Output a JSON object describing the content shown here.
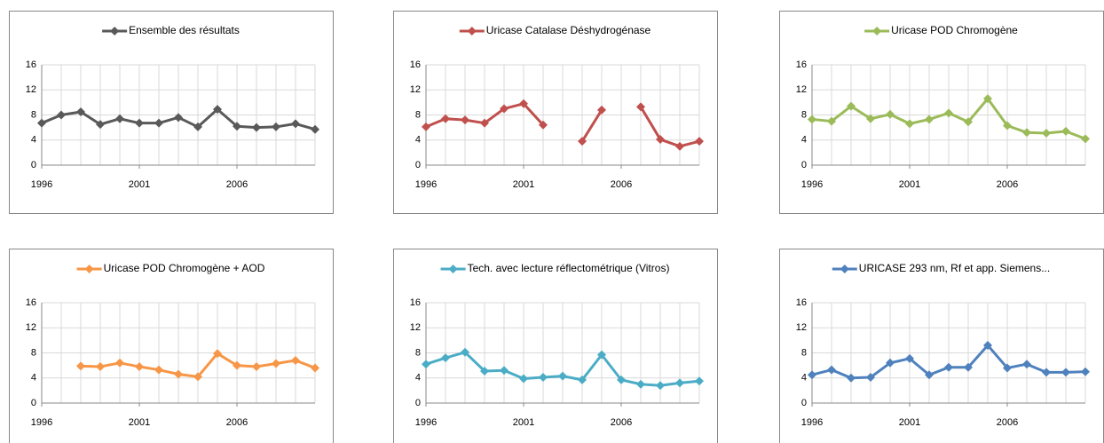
{
  "chart_data": [
    {
      "type": "line",
      "xlim": [
        1996,
        2010
      ],
      "xticks": [
        1996,
        2001,
        2006
      ],
      "ylim": [
        0,
        16
      ],
      "yticks": [
        0,
        4,
        8,
        12,
        16
      ],
      "grid": true,
      "x": [
        1996,
        1997,
        1998,
        1999,
        2000,
        2001,
        2002,
        2003,
        2004,
        2005,
        2006,
        2007,
        2008,
        2009,
        2010
      ],
      "series": [
        {
          "name": "Ensemble des résultats",
          "color": "#595959",
          "values": [
            6.7,
            8.0,
            8.5,
            6.5,
            7.4,
            6.7,
            6.7,
            7.6,
            6.1,
            8.9,
            6.2,
            6.0,
            6.1,
            6.6,
            5.7
          ]
        }
      ]
    },
    {
      "type": "line",
      "xlim": [
        1996,
        2010
      ],
      "xticks": [
        1996,
        2001,
        2006
      ],
      "ylim": [
        0,
        16
      ],
      "yticks": [
        0,
        4,
        8,
        12,
        16
      ],
      "grid": true,
      "x": [
        1996,
        1997,
        1998,
        1999,
        2000,
        2001,
        2002,
        2003,
        2004,
        2005,
        2006,
        2007,
        2008,
        2009,
        2010
      ],
      "series": [
        {
          "name": "Uricase Catalase Déshydrogénase",
          "color": "#c0504d",
          "values": [
            6.1,
            7.4,
            7.2,
            6.7,
            9.0,
            9.8,
            6.4,
            null,
            3.8,
            8.8,
            null,
            9.3,
            4.1,
            3.0,
            3.8
          ]
        }
      ]
    },
    {
      "type": "line",
      "xlim": [
        1996,
        2010
      ],
      "xticks": [
        1996,
        2001,
        2006
      ],
      "ylim": [
        0,
        16
      ],
      "yticks": [
        0,
        4,
        8,
        12,
        16
      ],
      "grid": true,
      "x": [
        1996,
        1997,
        1998,
        1999,
        2000,
        2001,
        2002,
        2003,
        2004,
        2005,
        2006,
        2007,
        2008,
        2009,
        2010
      ],
      "series": [
        {
          "name": "Uricase POD Chromogène",
          "color": "#9bbb59",
          "values": [
            7.3,
            7.0,
            9.4,
            7.4,
            8.1,
            6.6,
            7.3,
            8.3,
            6.9,
            10.6,
            6.3,
            5.2,
            5.1,
            5.4,
            4.2
          ]
        }
      ]
    },
    {
      "type": "line",
      "xlim": [
        1996,
        2010
      ],
      "xticks": [
        1996,
        2001,
        2006
      ],
      "ylim": [
        0,
        16
      ],
      "yticks": [
        0,
        4,
        8,
        12,
        16
      ],
      "grid": true,
      "x": [
        1996,
        1997,
        1998,
        1999,
        2000,
        2001,
        2002,
        2003,
        2004,
        2005,
        2006,
        2007,
        2008,
        2009,
        2010
      ],
      "series": [
        {
          "name": "Uricase POD Chromogène + AOD",
          "color": "#f79646",
          "values": [
            null,
            null,
            5.9,
            5.8,
            6.4,
            5.8,
            5.3,
            4.6,
            4.2,
            7.9,
            6.0,
            5.8,
            6.3,
            6.8,
            5.6
          ]
        }
      ]
    },
    {
      "type": "line",
      "xlim": [
        1996,
        2010
      ],
      "xticks": [
        1996,
        2001,
        2006
      ],
      "ylim": [
        0,
        16
      ],
      "yticks": [
        0,
        4,
        8,
        12,
        16
      ],
      "grid": true,
      "x": [
        1996,
        1997,
        1998,
        1999,
        2000,
        2001,
        2002,
        2003,
        2004,
        2005,
        2006,
        2007,
        2008,
        2009,
        2010
      ],
      "series": [
        {
          "name": "Tech. avec lecture réflectométrique (Vitros)",
          "color": "#4bacc6",
          "values": [
            6.2,
            7.2,
            8.1,
            5.1,
            5.2,
            3.9,
            4.1,
            4.3,
            3.7,
            7.7,
            3.7,
            3.0,
            2.8,
            3.2,
            3.5
          ]
        }
      ]
    },
    {
      "type": "line",
      "xlim": [
        1996,
        2010
      ],
      "xticks": [
        1996,
        2001,
        2006
      ],
      "ylim": [
        0,
        16
      ],
      "yticks": [
        0,
        4,
        8,
        12,
        16
      ],
      "grid": true,
      "x": [
        1996,
        1997,
        1998,
        1999,
        2000,
        2001,
        2002,
        2003,
        2004,
        2005,
        2006,
        2007,
        2008,
        2009,
        2010
      ],
      "series": [
        {
          "name": "URICASE 293 nm, Rf et app. Siemens...",
          "color": "#4f81bd",
          "values": [
            4.5,
            5.3,
            4.0,
            4.1,
            6.4,
            7.1,
            4.5,
            5.7,
            5.7,
            9.2,
            5.6,
            6.2,
            4.9,
            4.9,
            5.0
          ]
        }
      ]
    }
  ]
}
